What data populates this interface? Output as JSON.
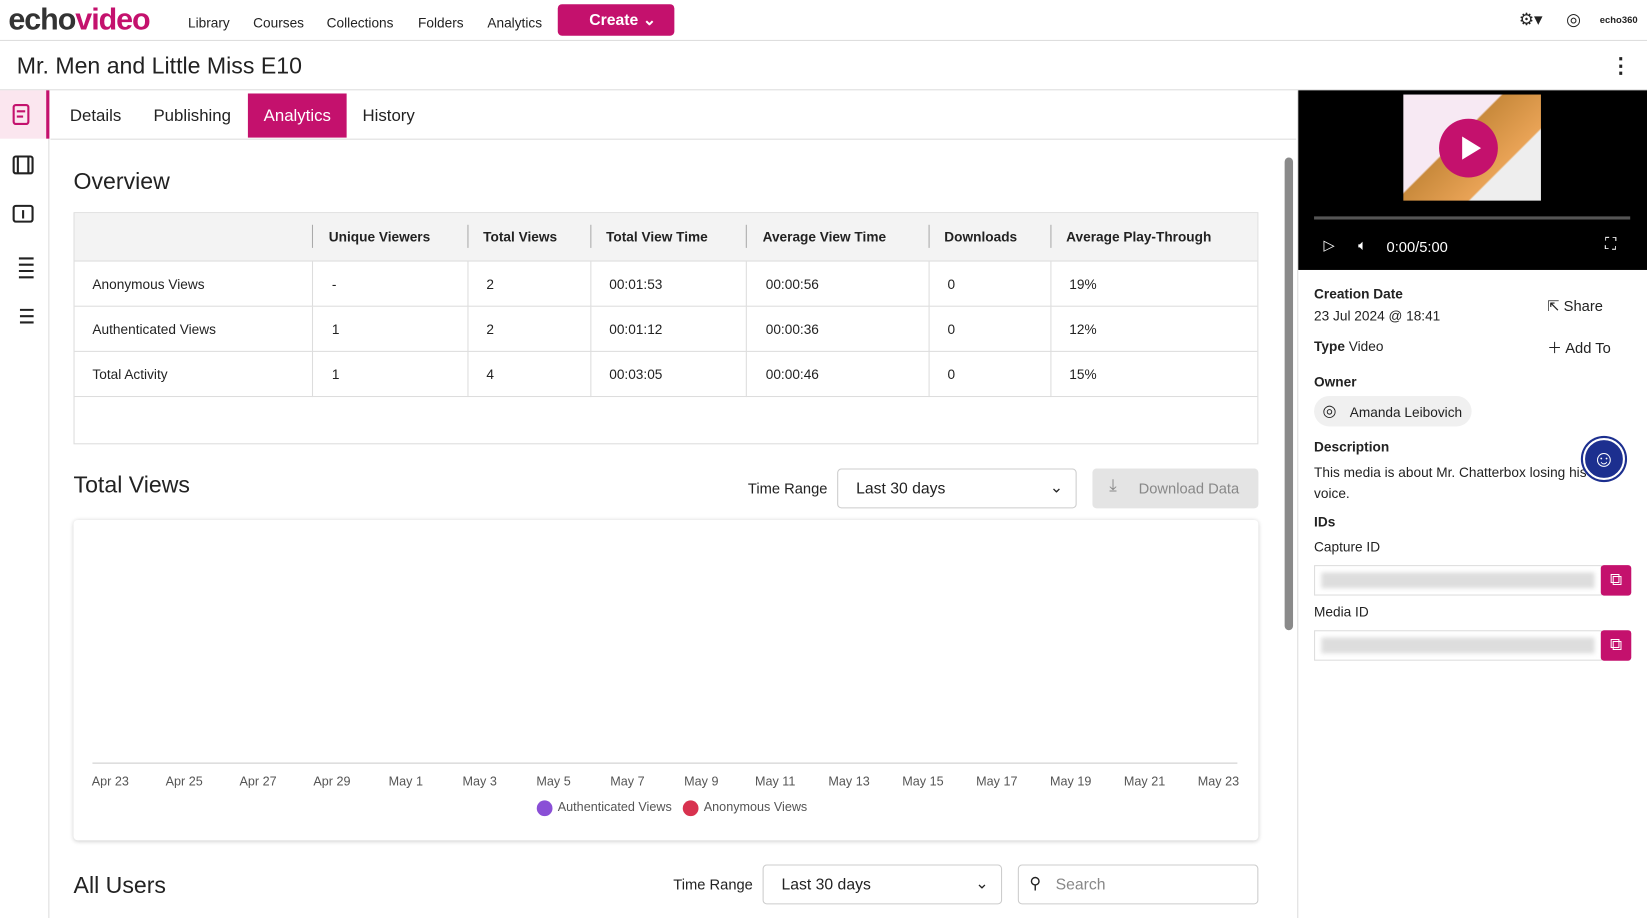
{
  "nav": {
    "logo_a": "echo",
    "logo_b": "video",
    "links": [
      "Library",
      "Courses",
      "Collections",
      "Folders",
      "Analytics"
    ],
    "create": "Create",
    "brand": "echo360"
  },
  "header": {
    "title": "Mr. Men and Little Miss E10"
  },
  "tabs": [
    "Details",
    "Publishing",
    "Analytics",
    "History"
  ],
  "overview": {
    "title": "Overview",
    "columns": [
      "Unique Viewers",
      "Total Views",
      "Total View Time",
      "Average View Time",
      "Downloads",
      "Average Play-Through"
    ],
    "rows": [
      {
        "label": "Anonymous Views",
        "cells": [
          "-",
          "2",
          "00:01:53",
          "00:00:56",
          "0",
          "19%"
        ]
      },
      {
        "label": "Authenticated Views",
        "cells": [
          "1",
          "2",
          "00:01:12",
          "00:00:36",
          "0",
          "12%"
        ]
      },
      {
        "label": "Total Activity",
        "cells": [
          "1",
          "4",
          "00:03:05",
          "00:00:46",
          "0",
          "15%"
        ]
      }
    ]
  },
  "total_views": {
    "title": "Total Views",
    "time_range_label": "Time Range",
    "time_range": "Last 30 days",
    "download": "Download Data",
    "x_labels": [
      "Apr 23",
      "Apr 25",
      "Apr 27",
      "Apr 29",
      "May 1",
      "May 3",
      "May 5",
      "May 7",
      "May 9",
      "May 11",
      "May 13",
      "May 15",
      "May 17",
      "May 19",
      "May 21",
      "May 23"
    ],
    "legend": [
      {
        "name": "Authenticated Views",
        "color": "#8a4fd6"
      },
      {
        "name": "Anonymous Views",
        "color": "#d8324f"
      }
    ]
  },
  "all_users": {
    "title": "All Users",
    "time_range_label": "Time Range",
    "time_range": "Last 30 days",
    "search": "Search"
  },
  "player": {
    "time": "0:00/5:00"
  },
  "details": {
    "creation_date_label": "Creation Date",
    "creation_date": "23 Jul 2024 @ 18:41",
    "share": "Share",
    "type_label": "Type",
    "type": "Video",
    "add_to": "Add To",
    "owner_label": "Owner",
    "owner": "Amanda Leibovich",
    "description_label": "Description",
    "description": "This media is about Mr. Chatterbox losing his voice.",
    "ids_label": "IDs",
    "capture_id_label": "Capture ID",
    "media_id_label": "Media ID"
  }
}
